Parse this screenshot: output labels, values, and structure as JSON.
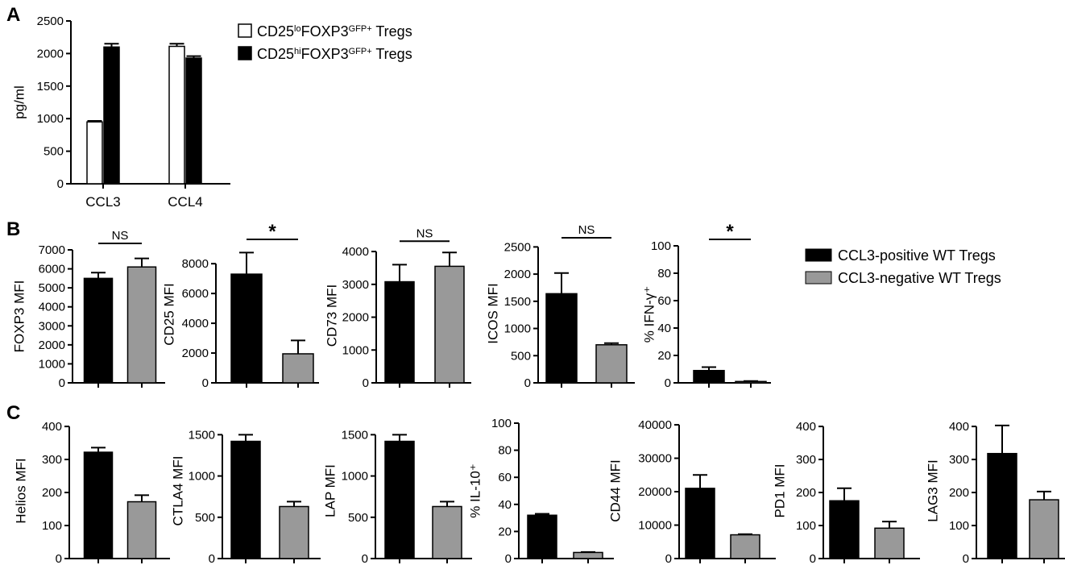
{
  "figure": {
    "panel_letters": [
      "A",
      "B",
      "C"
    ]
  },
  "colors": {
    "white_bar": "#ffffff",
    "black_bar": "#000000",
    "gray_bar": "#999999",
    "stroke": "#000000"
  },
  "legends": {
    "a": [
      {
        "pre": "CD25",
        "sup": "lo",
        "mid": "FOXP3",
        "sup2": "GFP+",
        "post": " Tregs"
      },
      {
        "pre": "CD25",
        "sup": "hi",
        "mid": "FOXP3",
        "sup2": "GFP+",
        "post": " Tregs"
      }
    ],
    "b": [
      "CCL3-positive WT Tregs",
      "CCL3-negative WT Tregs"
    ]
  },
  "chart_data": [
    {
      "id": "a",
      "panel": "A",
      "type": "bar",
      "ylabel": "pg/ml",
      "ylim": [
        0,
        2500
      ],
      "yticks": [
        0,
        500,
        1000,
        1500,
        2000,
        2500
      ],
      "categories": [
        "CCL3",
        "CCL4"
      ],
      "series": [
        {
          "legend_index": 0,
          "values": [
            950,
            2110
          ],
          "errors": [
            15,
            40
          ]
        },
        {
          "legend_index": 1,
          "values": [
            2100,
            1930
          ],
          "errors": [
            50,
            30
          ]
        }
      ]
    },
    {
      "id": "foxp3",
      "panel": "B",
      "type": "bar",
      "ylabel": "FOXP3 MFI",
      "ylim": [
        0,
        7000
      ],
      "yticks": [
        0,
        1000,
        2000,
        3000,
        4000,
        5000,
        6000,
        7000
      ],
      "values": [
        5500,
        6100
      ],
      "errors": [
        300,
        450
      ],
      "significance": "NS"
    },
    {
      "id": "cd25",
      "panel": "B",
      "type": "bar",
      "ylabel": "CD25 MFI",
      "ylim": [
        0,
        9200
      ],
      "yticks": [
        0,
        2000,
        4000,
        6000,
        8000
      ],
      "values": [
        7300,
        1950
      ],
      "errors": [
        1450,
        900
      ],
      "significance": "*"
    },
    {
      "id": "cd73",
      "panel": "B",
      "type": "bar",
      "ylabel": "CD73 MFI",
      "ylim": [
        0,
        4100
      ],
      "yticks": [
        0,
        1000,
        2000,
        3000,
        4000
      ],
      "values": [
        3080,
        3550
      ],
      "errors": [
        520,
        420
      ],
      "significance": "NS"
    },
    {
      "id": "icos",
      "panel": "B",
      "type": "bar",
      "ylabel": "ICOS MFI",
      "ylim": [
        0,
        2550
      ],
      "yticks": [
        0,
        500,
        1000,
        1500,
        2000,
        2500
      ],
      "values": [
        1640,
        700
      ],
      "errors": [
        380,
        30
      ],
      "significance": "NS"
    },
    {
      "id": "ifng",
      "panel": "B",
      "type": "bar",
      "ylabel": "% IFN-γ⁺",
      "ylim": [
        0,
        100
      ],
      "yticks": [
        0,
        20,
        40,
        60,
        80,
        100
      ],
      "values": [
        9,
        1
      ],
      "errors": [
        2.5,
        0.3
      ],
      "significance": "*"
    },
    {
      "id": "helios",
      "panel": "C",
      "type": "bar",
      "ylabel": "Helios MFI",
      "ylim": [
        0,
        410
      ],
      "yticks": [
        0,
        100,
        200,
        300,
        400
      ],
      "values": [
        322,
        172
      ],
      "errors": [
        14,
        20
      ]
    },
    {
      "id": "ctla4",
      "panel": "C",
      "type": "bar",
      "ylabel": "CTLA4 MFI",
      "ylim": [
        0,
        1640
      ],
      "yticks": [
        0,
        500,
        1000,
        1500
      ],
      "values": [
        1420,
        630
      ],
      "errors": [
        80,
        60
      ]
    },
    {
      "id": "lap",
      "panel": "C",
      "type": "bar",
      "ylabel": "LAP MFI",
      "ylim": [
        0,
        1640
      ],
      "yticks": [
        0,
        500,
        1000,
        1500
      ],
      "values": [
        1420,
        630
      ],
      "errors": [
        80,
        60
      ]
    },
    {
      "id": "il10",
      "panel": "C",
      "type": "bar",
      "ylabel": "% IL-10⁺",
      "ylim": [
        0,
        100
      ],
      "yticks": [
        0,
        20,
        40,
        60,
        80,
        100
      ],
      "values": [
        32,
        4.5
      ],
      "errors": [
        1,
        0.3
      ]
    },
    {
      "id": "cd44",
      "panel": "C",
      "type": "bar",
      "ylabel": "CD44 MFI",
      "ylim": [
        0,
        40500
      ],
      "yticks": [
        0,
        10000,
        20000,
        30000,
        40000
      ],
      "values": [
        21000,
        7100
      ],
      "errors": [
        4000,
        200
      ]
    },
    {
      "id": "pd1",
      "panel": "C",
      "type": "bar",
      "ylabel": "PD1 MFI",
      "ylim": [
        0,
        410
      ],
      "yticks": [
        0,
        100,
        200,
        300,
        400
      ],
      "values": [
        175,
        92
      ],
      "errors": [
        38,
        20
      ]
    },
    {
      "id": "lag3",
      "panel": "C",
      "type": "bar",
      "ylabel": "LAG3 MFI",
      "ylim": [
        0,
        410
      ],
      "yticks": [
        0,
        100,
        200,
        300,
        400
      ],
      "values": [
        318,
        178
      ],
      "errors": [
        85,
        25
      ]
    }
  ]
}
